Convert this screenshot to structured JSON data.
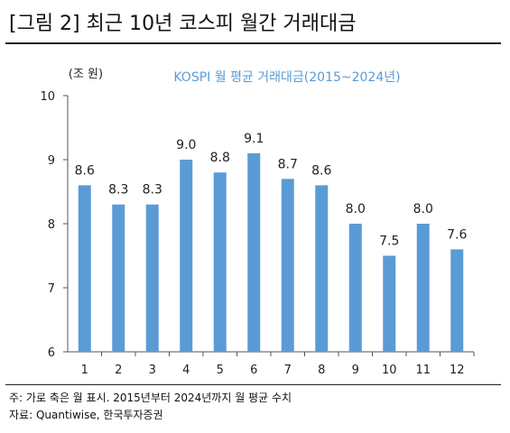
{
  "header": {
    "title": "[그림 2] 최근 10년 코스피 월간 거래대금"
  },
  "chart_data": {
    "type": "bar",
    "title": "KOSPI 월 평균 거래대금(2015~2024년)",
    "ylabel": "(조 원)",
    "xlabel": "",
    "categories": [
      "1",
      "2",
      "3",
      "4",
      "5",
      "6",
      "7",
      "8",
      "9",
      "10",
      "11",
      "12"
    ],
    "values": [
      8.6,
      8.3,
      8.3,
      9.0,
      8.8,
      9.1,
      8.7,
      8.6,
      8.0,
      7.5,
      8.0,
      7.6
    ],
    "data_labels": [
      "8.6",
      "8.3",
      "8.3",
      "9.0",
      "8.8",
      "9.1",
      "8.7",
      "8.6",
      "8.0",
      "7.5",
      "8.0",
      "7.6"
    ],
    "ylim": [
      6,
      10
    ],
    "yticks": [
      "6",
      "7",
      "8",
      "9",
      "10"
    ],
    "grid": false,
    "legend": "none",
    "bar_color": "#5b9bd5",
    "title_color": "#5b9bd5"
  },
  "footer": {
    "note": "주: 가로 축은 월 표시. 2015년부터 2024년까지 월 평균 수치",
    "source": "자료: Quantiwise, 한국투자증권"
  }
}
